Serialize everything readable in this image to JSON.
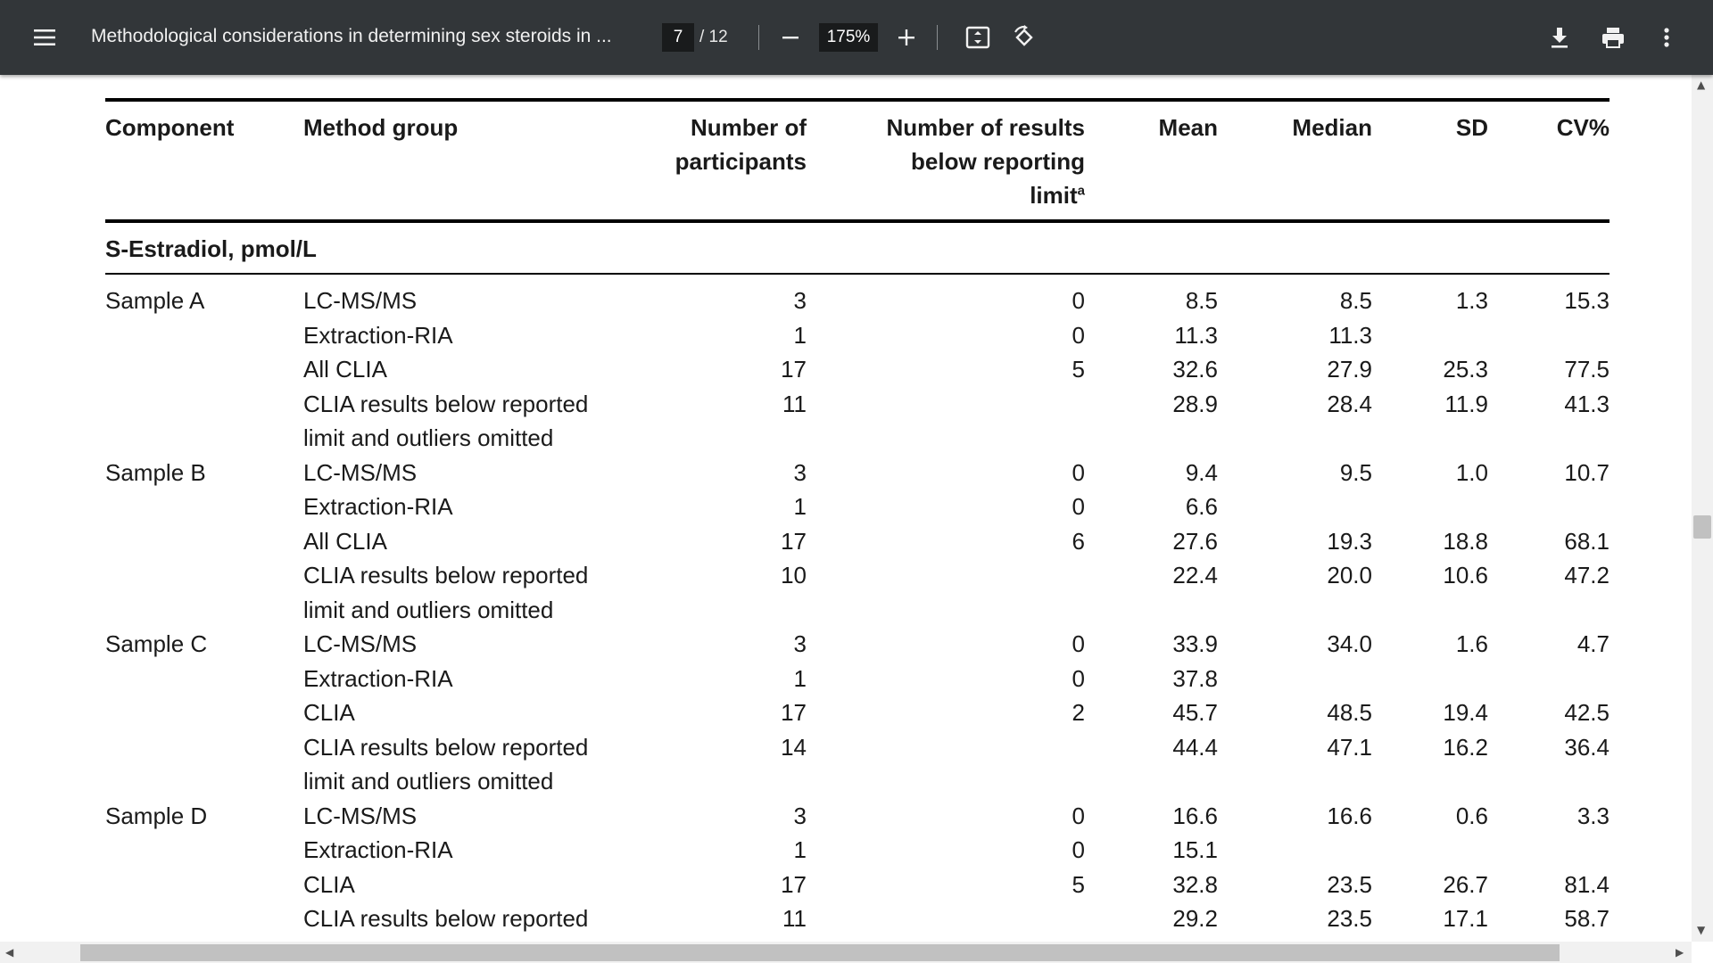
{
  "toolbar": {
    "title": "Methodological considerations in determining sex steroids in ...",
    "page_current": "7",
    "page_total": "/ 12",
    "zoom": "175%",
    "icons": [
      "menu-icon",
      "minus-icon",
      "plus-icon",
      "fit-page-icon",
      "rotate-icon",
      "download-icon",
      "print-icon",
      "more-vert-icon"
    ]
  },
  "table": {
    "headers": {
      "component": "Component",
      "method_group": "Method group",
      "participants_l1": "Number of",
      "participants_l2": "participants",
      "below_l1": "Number of results",
      "below_l2": "below reporting",
      "below_l3": "limit",
      "below_sup": "a",
      "mean": "Mean",
      "median": "Median",
      "sd": "SD",
      "cv": "CV%"
    },
    "section_title": "S-Estradiol, pmol/L",
    "samples": [
      {
        "name": "Sample A",
        "rows": [
          {
            "method": "LC-MS/MS",
            "method2": "",
            "n": "3",
            "below": "0",
            "mean": "8.5",
            "median": "8.5",
            "sd": "1.3",
            "cv": "15.3"
          },
          {
            "method": "Extraction-RIA",
            "method2": "",
            "n": "1",
            "below": "0",
            "mean": "11.3",
            "median": "11.3",
            "sd": "",
            "cv": ""
          },
          {
            "method": "All CLIA",
            "method2": "",
            "n": "17",
            "below": "5",
            "mean": "32.6",
            "median": "27.9",
            "sd": "25.3",
            "cv": "77.5"
          },
          {
            "method": "CLIA results below reported",
            "method2": "limit and outliers omitted",
            "n": "11",
            "below": "",
            "mean": "28.9",
            "median": "28.4",
            "sd": "11.9",
            "cv": "41.3"
          }
        ]
      },
      {
        "name": "Sample B",
        "rows": [
          {
            "method": "LC-MS/MS",
            "method2": "",
            "n": "3",
            "below": "0",
            "mean": "9.4",
            "median": "9.5",
            "sd": "1.0",
            "cv": "10.7"
          },
          {
            "method": "Extraction-RIA",
            "method2": "",
            "n": "1",
            "below": "0",
            "mean": "6.6",
            "median": "",
            "sd": "",
            "cv": ""
          },
          {
            "method": "All CLIA",
            "method2": "",
            "n": "17",
            "below": "6",
            "mean": "27.6",
            "median": "19.3",
            "sd": "18.8",
            "cv": "68.1"
          },
          {
            "method": "CLIA results below reported",
            "method2": "limit and outliers omitted",
            "n": "10",
            "below": "",
            "mean": "22.4",
            "median": "20.0",
            "sd": "10.6",
            "cv": "47.2"
          }
        ]
      },
      {
        "name": "Sample C",
        "rows": [
          {
            "method": "LC-MS/MS",
            "method2": "",
            "n": "3",
            "below": "0",
            "mean": "33.9",
            "median": "34.0",
            "sd": "1.6",
            "cv": "4.7"
          },
          {
            "method": "Extraction-RIA",
            "method2": "",
            "n": "1",
            "below": "0",
            "mean": "37.8",
            "median": "",
            "sd": "",
            "cv": ""
          },
          {
            "method": "CLIA",
            "method2": "",
            "n": "17",
            "below": "2",
            "mean": "45.7",
            "median": "48.5",
            "sd": "19.4",
            "cv": "42.5"
          },
          {
            "method": "CLIA results below reported",
            "method2": "limit and outliers omitted",
            "n": "14",
            "below": "",
            "mean": "44.4",
            "median": "47.1",
            "sd": "16.2",
            "cv": "36.4"
          }
        ]
      },
      {
        "name": "Sample D",
        "rows": [
          {
            "method": "LC-MS/MS",
            "method2": "",
            "n": "3",
            "below": "0",
            "mean": "16.6",
            "median": "16.6",
            "sd": "0.6",
            "cv": "3.3"
          },
          {
            "method": "Extraction-RIA",
            "method2": "",
            "n": "1",
            "below": "0",
            "mean": "15.1",
            "median": "",
            "sd": "",
            "cv": ""
          },
          {
            "method": "CLIA",
            "method2": "",
            "n": "17",
            "below": "5",
            "mean": "32.8",
            "median": "23.5",
            "sd": "26.7",
            "cv": "81.4"
          },
          {
            "method": "CLIA results below reported",
            "method2": "",
            "n": "11",
            "below": "",
            "mean": "29.2",
            "median": "23.5",
            "sd": "17.1",
            "cv": "58.7"
          }
        ]
      }
    ]
  },
  "colors": {
    "toolbar_bg": "#323639",
    "field_bg": "#191b1c",
    "page_bg": "#ffffff",
    "rule": "#000000"
  }
}
